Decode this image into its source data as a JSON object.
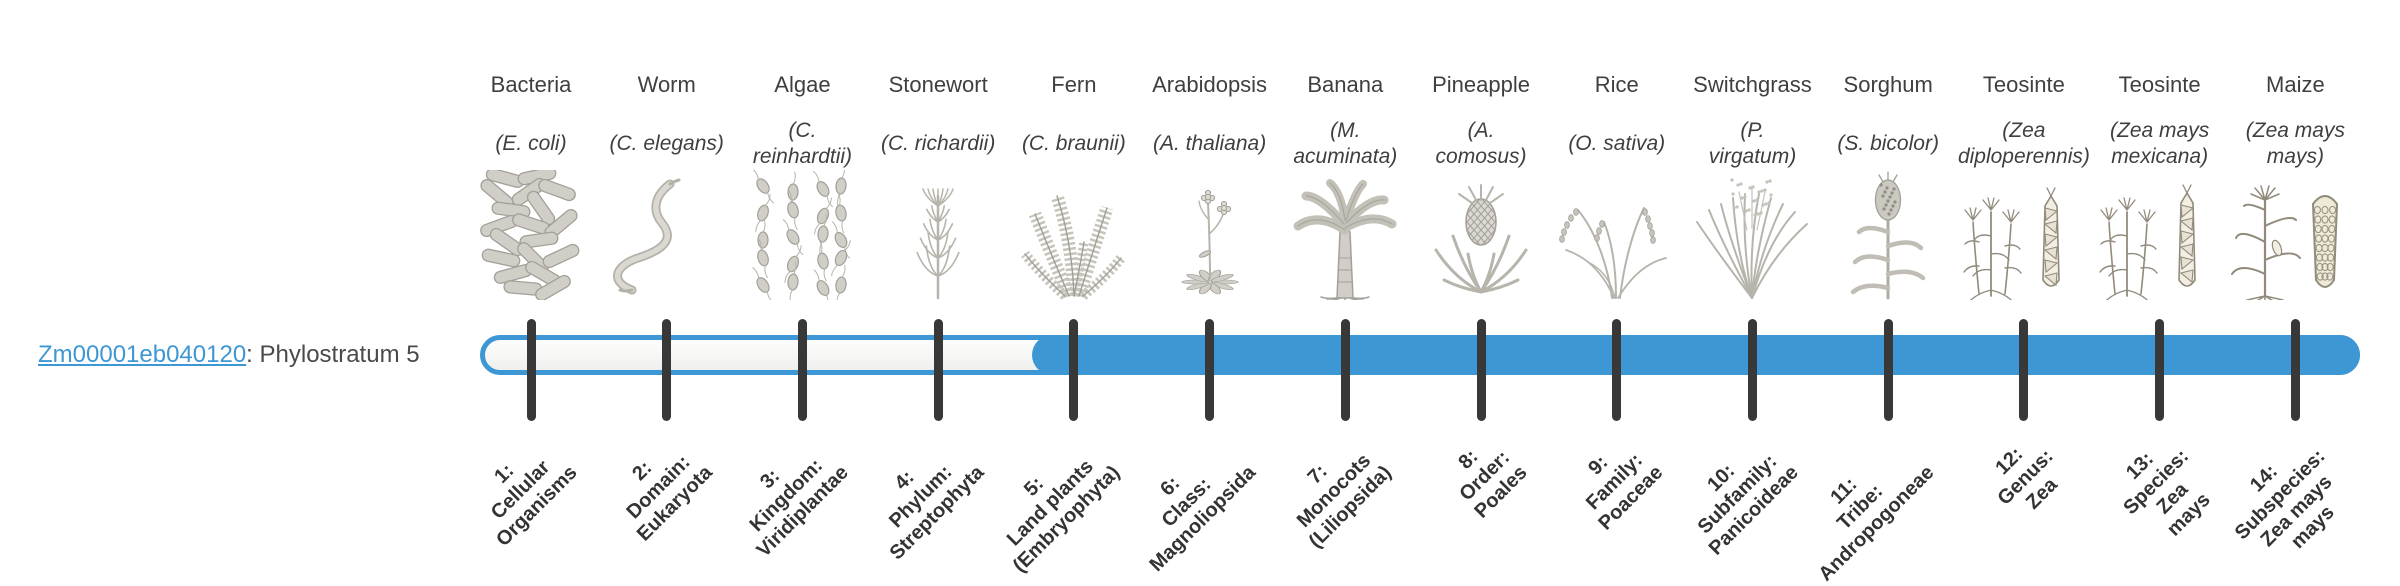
{
  "gene": {
    "id": "Zm00001eb040120",
    "description": ": Phylostratum 5"
  },
  "colors": {
    "bar_blue": "#3D97D5",
    "tick": "#383838",
    "link_blue": "#3D97D5",
    "title_text": "#4a4a4a",
    "organism_label": "#3f3f3f",
    "rank_label": "#333333"
  },
  "timeline": {
    "total_strata": 14,
    "gene_phylostratum": 5,
    "filled_from_stratum": 5
  },
  "chart_data": {
    "type": "bar",
    "orientation": "horizontal-timeline",
    "title": "Zm00001eb040120: Phylostratum 5",
    "categories": [
      "1: Cellular Organisms",
      "2: Domain: Eukaryota",
      "3: Kingdom: Viridiplantae",
      "4: Phylum: Streptophyta",
      "5: Land plants (Embryophyta)",
      "6: Class: Magnoliopsida",
      "7: Monocots (Liliopsida)",
      "8: Order: Poales",
      "9: Family: Poaceae",
      "10: Subfamily: Panicoideae",
      "11: Tribe: Andropogoneae",
      "12: Genus: Zea",
      "13: Species: Zea mays",
      "14: Subspecies: Zea mays mays"
    ],
    "organisms_axis": [
      "Bacteria (E. coli)",
      "Worm (C. elegans)",
      "Algae (C. reinhardtii)",
      "Stonewort (C. richardii)",
      "Fern (C. braunii)",
      "Arabidopsis (A. thaliana)",
      "Banana (M. acuminata)",
      "Pineapple (A. comosus)",
      "Rice (O. sativa)",
      "Switchgrass (P. virgatum)",
      "Sorghum (S. bicolor)",
      "Teosinte (Zea diploperennis)",
      "Teosinte (Zea mays mexicana)",
      "Maize (Zea mays mays)"
    ],
    "filled": [
      false,
      false,
      false,
      false,
      true,
      true,
      true,
      true,
      true,
      true,
      true,
      true,
      true,
      true
    ],
    "gene_phylostratum": 5
  },
  "organisms": [
    {
      "rank": 1,
      "common": "Bacteria",
      "scientific": "(E. coli)",
      "rank_label": "1:\nCellular\nOrganisms",
      "icon": "bacteria-icon"
    },
    {
      "rank": 2,
      "common": "Worm",
      "scientific": "(C. elegans)",
      "rank_label": "2:\nDomain:\nEukaryota",
      "icon": "worm-icon"
    },
    {
      "rank": 3,
      "common": "Algae",
      "scientific": "(C.\nreinhardtii)",
      "rank_label": "3:\nKingdom:\nViridiplantae",
      "icon": "algae-icon"
    },
    {
      "rank": 4,
      "common": "Stonewort",
      "scientific": "(C. richardii)",
      "rank_label": "4:\nPhylum:\nStreptophyta",
      "icon": "stonewort-icon"
    },
    {
      "rank": 5,
      "common": "Fern",
      "scientific": "(C. braunii)",
      "rank_label": "5:\nLand plants\n(Embryophyta)",
      "icon": "fern-icon"
    },
    {
      "rank": 6,
      "common": "Arabidopsis",
      "scientific": "(A. thaliana)",
      "rank_label": "6:\nClass:\nMagnoliopsida",
      "icon": "arabidopsis-icon"
    },
    {
      "rank": 7,
      "common": "Banana",
      "scientific": "(M.\nacuminata)",
      "rank_label": "7:\nMonocots\n(Liliopsida)",
      "icon": "banana-icon"
    },
    {
      "rank": 8,
      "common": "Pineapple",
      "scientific": "(A.\ncomosus)",
      "rank_label": "8:\nOrder:\nPoales",
      "icon": "pineapple-icon"
    },
    {
      "rank": 9,
      "common": "Rice",
      "scientific": "(O. sativa)",
      "rank_label": "9:\nFamily:\nPoaceae",
      "icon": "rice-icon"
    },
    {
      "rank": 10,
      "common": "Switchgrass",
      "scientific": "(P.\nvirgatum)",
      "rank_label": "10:\nSubfamily:\nPanicoideae",
      "icon": "switchgrass-icon"
    },
    {
      "rank": 11,
      "common": "Sorghum",
      "scientific": "(S. bicolor)",
      "rank_label": "11:\nTribe:\nAndropogoneae",
      "icon": "sorghum-icon"
    },
    {
      "rank": 12,
      "common": "Teosinte",
      "scientific": "(Zea\ndiploperennis)",
      "rank_label": "12:\nGenus:\nZea",
      "icon": "teosinte-icon"
    },
    {
      "rank": 13,
      "common": "Teosinte",
      "scientific": "(Zea mays\nmexicana)",
      "rank_label": "13:\nSpecies:\nZea\nmays",
      "icon": "teosinte-icon"
    },
    {
      "rank": 14,
      "common": "Maize",
      "scientific": "(Zea mays\nmays)",
      "rank_label": "14:\nSubspecies:\nZea mays\nmays",
      "icon": "maize-icon"
    }
  ]
}
